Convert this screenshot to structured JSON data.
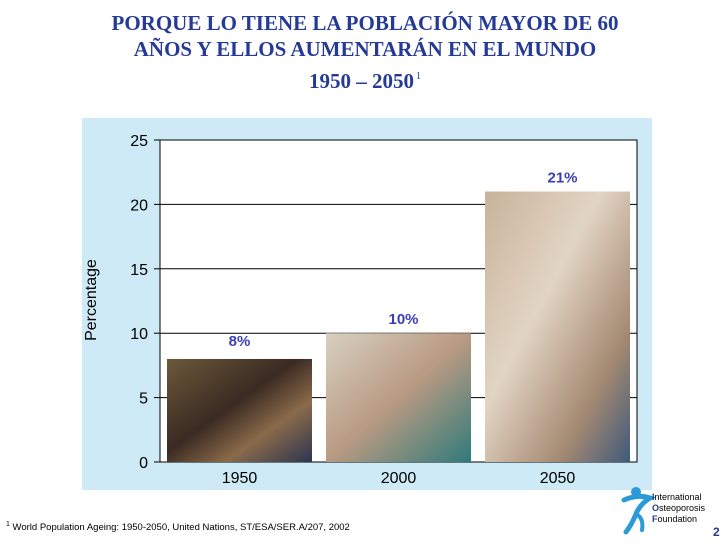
{
  "title": {
    "line1": "PORQUE  LO TIENE LA POBLACIÓN MAYOR DE 60",
    "line2": "AÑOS Y ELLOS AUMENTARÁN EN EL MUNDO",
    "line3": "1950 – 2050",
    "superscript": "1"
  },
  "chart_data": {
    "type": "bar",
    "categories": [
      "1950",
      "2000",
      "2050"
    ],
    "values": [
      8,
      10,
      21
    ],
    "value_labels": [
      "8%",
      "10%",
      "21%"
    ],
    "ylabel": "Percentage",
    "xlabel": "",
    "ylim": [
      0,
      25
    ],
    "yticks": [
      0,
      5,
      10,
      15,
      20,
      25
    ],
    "grid": true,
    "bar_fill": "photographs of older people",
    "label_color": "#3b3fb6",
    "panel_color": "#cdeaf6"
  },
  "footnote": {
    "marker": "1",
    "text": "World Population Ageing: 1950-2050, United Nations, ST/ESA/SER.A/207, 2002"
  },
  "logo": {
    "icon": "iof-figure-icon",
    "lines": [
      "International",
      "Osteoporosis",
      "Foundation"
    ],
    "initials": [
      "I",
      "O",
      "F"
    ],
    "rest": [
      "nternational",
      "steoporosis",
      "oundation"
    ]
  },
  "page_number": "2"
}
